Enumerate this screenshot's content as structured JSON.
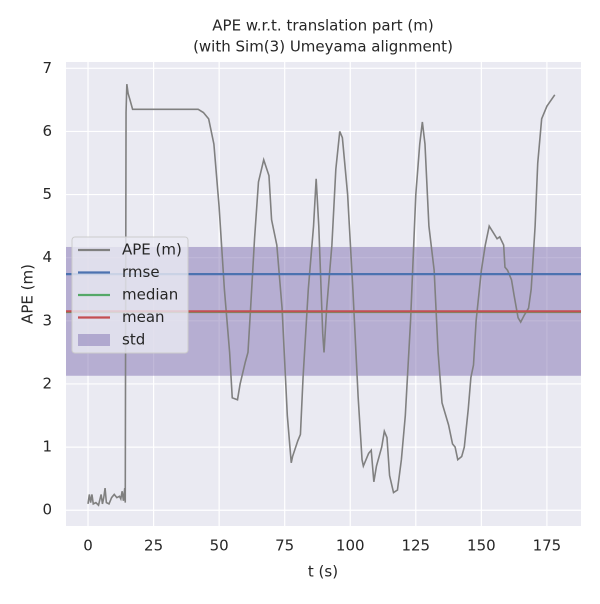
{
  "chart_data": {
    "type": "line",
    "title": "APE w.r.t. translation part (m)",
    "subtitle": "(with Sim(3) Umeyama alignment)",
    "x_label": "t (s)",
    "y_label": "APE (m)",
    "xlim": [
      -8.4,
      188
    ],
    "ylim": [
      -0.25,
      7.1
    ],
    "xticks": [
      0,
      25,
      50,
      75,
      100,
      125,
      150,
      175
    ],
    "yticks": [
      0,
      1,
      2,
      3,
      4,
      5,
      6,
      7
    ],
    "grid": true,
    "legend": "center left",
    "series": [
      {
        "name": "APE (m)",
        "color": "#808080",
        "x": [
          0,
          0.5,
          1,
          1.5,
          2,
          3,
          4,
          5,
          5.5,
          6,
          6.5,
          7,
          8,
          9,
          10,
          11,
          12,
          12.5,
          13,
          13.5,
          14,
          14.2,
          14.5,
          14.8,
          15.3,
          16,
          17,
          25,
          35,
          42,
          44,
          46,
          48,
          50,
          52,
          54,
          55,
          57,
          58,
          60,
          61,
          62,
          63.5,
          65,
          67,
          69,
          70,
          72,
          74,
          76,
          77.5,
          78,
          80,
          81,
          82,
          84,
          86,
          87,
          88,
          89.5,
          90,
          91,
          93,
          94.5,
          96,
          97,
          99,
          101,
          103,
          104.5,
          105,
          107,
          108,
          109,
          110,
          112,
          113,
          114,
          115,
          116.5,
          118,
          119.5,
          121,
          123,
          125,
          126.5,
          127.5,
          128.5,
          130,
          132,
          133.5,
          135,
          137.5,
          139,
          140,
          141,
          142.5,
          143.5,
          145,
          146,
          147,
          148,
          150,
          151.5,
          153,
          154.5,
          156,
          157,
          158.5,
          159,
          160,
          161.5,
          162.5,
          164,
          165,
          166.5,
          168,
          169,
          170.5,
          171.5,
          173,
          175,
          178
        ],
        "values": [
          0.1,
          0.25,
          0.12,
          0.25,
          0.1,
          0.12,
          0.08,
          0.25,
          0.1,
          0.2,
          0.35,
          0.12,
          0.1,
          0.2,
          0.25,
          0.2,
          0.22,
          0.18,
          0.3,
          0.15,
          0.35,
          0.12,
          6.3,
          6.75,
          6.6,
          6.5,
          6.35,
          6.35,
          6.35,
          6.35,
          6.3,
          6.2,
          5.8,
          4.8,
          3.5,
          2.5,
          1.78,
          1.75,
          2.0,
          2.35,
          2.5,
          3.2,
          4.3,
          5.2,
          5.55,
          5.3,
          4.6,
          4.2,
          3.2,
          1.5,
          0.75,
          0.85,
          1.1,
          1.2,
          2.1,
          3.5,
          4.5,
          5.25,
          4.5,
          2.8,
          2.5,
          3.2,
          4.2,
          5.4,
          6.0,
          5.9,
          5.0,
          3.5,
          1.8,
          0.8,
          0.7,
          0.9,
          0.95,
          0.45,
          0.7,
          1.0,
          1.25,
          1.15,
          0.55,
          0.28,
          0.32,
          0.8,
          1.5,
          3.0,
          5.0,
          5.8,
          6.15,
          5.8,
          4.5,
          3.8,
          2.5,
          1.7,
          1.35,
          1.05,
          1.0,
          0.8,
          0.85,
          1.0,
          1.6,
          2.1,
          2.3,
          3.0,
          3.8,
          4.2,
          4.5,
          4.4,
          4.3,
          4.33,
          4.2,
          3.85,
          3.8,
          3.65,
          3.4,
          3.05,
          2.98,
          3.1,
          3.2,
          3.5,
          4.5,
          5.5,
          6.2,
          6.4,
          6.58
        ]
      }
    ],
    "hlines": [
      {
        "name": "rmse",
        "color": "#4c72b0",
        "value": 3.74
      },
      {
        "name": "median",
        "color": "#55a868",
        "value": 3.14
      },
      {
        "name": "mean",
        "color": "#c44e52",
        "value": 3.15
      }
    ],
    "band": {
      "name": "std",
      "color": "#8172b2",
      "value": 1.02
    }
  }
}
